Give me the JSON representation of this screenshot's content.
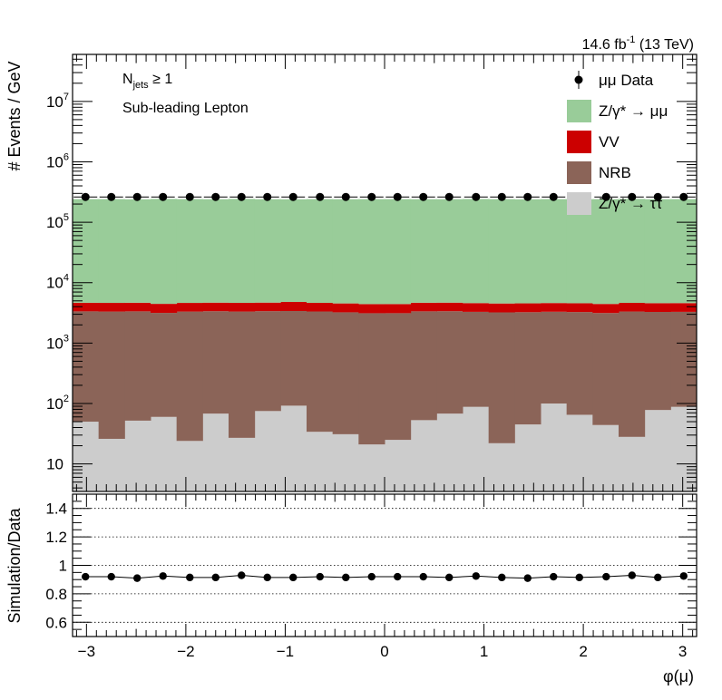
{
  "lumi_label": "14.6 fb",
  "lumi_sup": "-1",
  "lumi_energy": " (13 TeV)",
  "annotation": {
    "njets_main": "N",
    "njets_sub": "jets",
    "njets_cond": " ≥ 1",
    "line2": "Sub-leading Lepton"
  },
  "legend": [
    {
      "label": "μμ Data",
      "type": "marker",
      "color": "#000000"
    },
    {
      "label": "Z/γ* → μμ",
      "type": "box",
      "color": "#99cc99"
    },
    {
      "label": "VV",
      "type": "box",
      "color": "#cc0000"
    },
    {
      "label": "NRB",
      "type": "box",
      "color": "#8b6458"
    },
    {
      "label": "Z/γ* → ττ",
      "type": "box",
      "color": "#cccccc"
    }
  ],
  "chart_data": [
    {
      "type": "bar",
      "stacked": true,
      "log_y": true,
      "xlabel": "φ(μ)",
      "ylabel": "# Events / GeV",
      "xlim": [
        -3.14,
        3.14
      ],
      "ylim": [
        3.5,
        60000000
      ],
      "bins": 24,
      "x_ticks": [
        -3,
        -2,
        -1,
        0,
        1,
        2,
        3
      ],
      "x_tick_labels": [
        "−3",
        "−2",
        "−1",
        "0",
        "1",
        "2",
        "3"
      ],
      "y_tick_labels": [
        {
          "value": 10,
          "base": "10",
          "exp": ""
        },
        {
          "value": 100,
          "base": "10",
          "exp": "2"
        },
        {
          "value": 1000,
          "base": "10",
          "exp": "3"
        },
        {
          "value": 10000,
          "base": "10",
          "exp": "4"
        },
        {
          "value": 100000,
          "base": "10",
          "exp": "5"
        },
        {
          "value": 1000000,
          "base": "10",
          "exp": "6"
        },
        {
          "value": 10000000,
          "base": "10",
          "exp": "7"
        }
      ],
      "series": [
        {
          "name": "Z/γ* → ττ",
          "color": "#cccccc",
          "values": [
            50,
            26,
            52,
            60,
            24,
            68,
            27,
            75,
            92,
            34,
            31,
            21,
            25,
            53,
            68,
            88,
            22,
            45,
            100,
            65,
            44,
            28,
            78,
            88
          ]
        },
        {
          "name": "NRB",
          "color": "#8b6458",
          "values": [
            3300,
            3300,
            3300,
            3100,
            3300,
            3300,
            3300,
            3300,
            3300,
            3300,
            3200,
            3100,
            3100,
            3300,
            3300,
            3200,
            3200,
            3200,
            3200,
            3200,
            3100,
            3300,
            3200,
            3200
          ]
        },
        {
          "name": "VV",
          "color": "#cc0000",
          "values": [
            1300,
            1300,
            1300,
            1300,
            1300,
            1300,
            1300,
            1300,
            1400,
            1300,
            1300,
            1300,
            1300,
            1300,
            1300,
            1300,
            1300,
            1300,
            1300,
            1300,
            1300,
            1300,
            1300,
            1300
          ]
        },
        {
          "name": "Z/γ* → μμ",
          "color": "#99cc99",
          "values": [
            237000,
            237000,
            235000,
            239000,
            237000,
            236000,
            239000,
            236000,
            235000,
            237000,
            236000,
            237000,
            237000,
            236000,
            236000,
            238000,
            237000,
            235000,
            237000,
            236000,
            237000,
            239000,
            236000,
            237000
          ]
        }
      ],
      "data_points": {
        "name": "μμ Data",
        "x": [
          -3.01,
          -2.75,
          -2.49,
          -2.23,
          -1.96,
          -1.7,
          -1.44,
          -1.18,
          -0.92,
          -0.65,
          -0.39,
          -0.13,
          0.13,
          0.39,
          0.65,
          0.92,
          1.18,
          1.44,
          1.7,
          1.96,
          2.23,
          2.49,
          2.75,
          3.01
        ],
        "y": [
          262000,
          262000,
          262000,
          262000,
          262000,
          262000,
          262000,
          262000,
          262000,
          262000,
          262000,
          262000,
          262000,
          262000,
          262000,
          262000,
          262000,
          262000,
          262000,
          262000,
          262000,
          262000,
          262000,
          262000
        ]
      }
    },
    {
      "type": "scatter",
      "xlabel": "φ(μ)",
      "ylabel": "Simulation/Data",
      "xlim": [
        -3.14,
        3.14
      ],
      "ylim": [
        0.5,
        1.5
      ],
      "y_ticks": [
        0.6,
        0.8,
        1,
        1.2,
        1.4
      ],
      "y_tick_labels": [
        "0.6",
        "0.8",
        "1",
        "1.2",
        "1.4"
      ],
      "x_ticks": [
        -3,
        -2,
        -1,
        0,
        1,
        2,
        3
      ],
      "x_tick_labels": [
        "−3",
        "−2",
        "−1",
        "0",
        "1",
        "2",
        "3"
      ],
      "gridlines_y": [
        0.6,
        0.8,
        1,
        1.2,
        1.4
      ],
      "x": [
        -3.01,
        -2.75,
        -2.49,
        -2.23,
        -1.96,
        -1.7,
        -1.44,
        -1.18,
        -0.92,
        -0.65,
        -0.39,
        -0.13,
        0.13,
        0.39,
        0.65,
        0.92,
        1.18,
        1.44,
        1.7,
        1.96,
        2.23,
        2.49,
        2.75,
        3.01
      ],
      "y": [
        0.92,
        0.92,
        0.91,
        0.925,
        0.915,
        0.915,
        0.93,
        0.915,
        0.915,
        0.92,
        0.915,
        0.92,
        0.92,
        0.92,
        0.915,
        0.925,
        0.915,
        0.91,
        0.92,
        0.915,
        0.92,
        0.93,
        0.915,
        0.925
      ]
    }
  ]
}
